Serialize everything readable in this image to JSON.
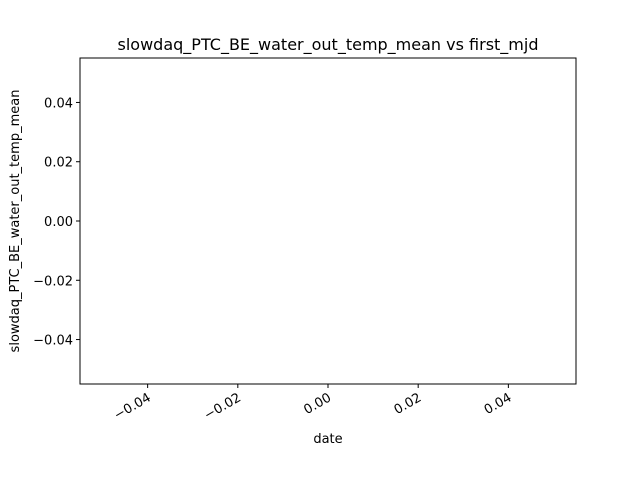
{
  "chart_data": {
    "type": "line",
    "title": "slowdaq_PTC_BE_water_out_temp_mean vs first_mjd",
    "xlabel": "date",
    "ylabel": "slowdaq_PTC_BE_water_out_temp_mean",
    "x": [],
    "series": [
      {
        "values": []
      }
    ],
    "xlim": [
      -0.055,
      0.055
    ],
    "ylim": [
      -0.055,
      0.055
    ],
    "xticks": [
      -0.04,
      -0.02,
      0.0,
      0.02,
      0.04
    ],
    "xtick_labels": [
      "−0.04",
      "−0.02",
      "0.00",
      "0.02",
      "0.04"
    ],
    "yticks": [
      -0.04,
      -0.02,
      0.0,
      0.02,
      0.04
    ],
    "ytick_labels": [
      "−0.04",
      "−0.02",
      "0.00",
      "0.02",
      "0.04"
    ],
    "xtick_rotation_deg": 30,
    "grid": false,
    "legend": "none",
    "colors": {
      "axes": "#000000",
      "background": "#ffffff"
    }
  }
}
